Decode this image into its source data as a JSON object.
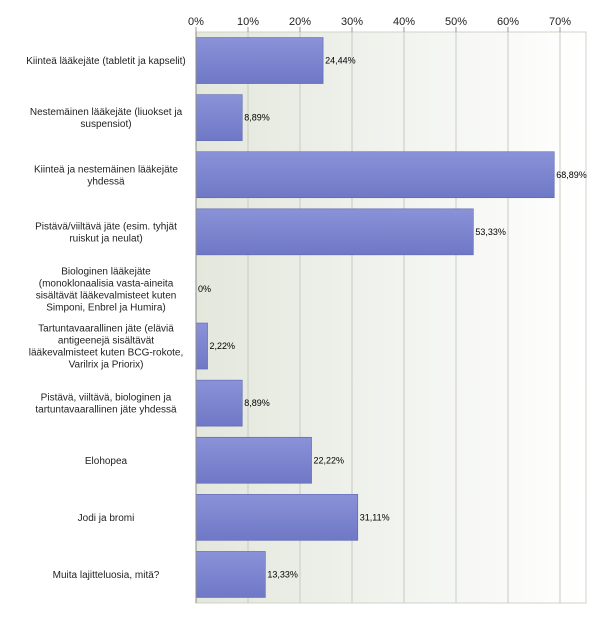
{
  "chart_data": {
    "type": "bar",
    "orientation": "horizontal",
    "title": "",
    "xlabel": "",
    "ylabel": "",
    "xlim": [
      0,
      75
    ],
    "x_ticks": [
      {
        "value": 0,
        "label": "0%"
      },
      {
        "value": 10,
        "label": "10%"
      },
      {
        "value": 20,
        "label": "20%"
      },
      {
        "value": 30,
        "label": "30%"
      },
      {
        "value": 40,
        "label": "40%"
      },
      {
        "value": 50,
        "label": "50%"
      },
      {
        "value": 60,
        "label": "60%"
      },
      {
        "value": 70,
        "label": "70%"
      }
    ],
    "tick_position": "top",
    "grid": true,
    "legend": "none",
    "bar_color": "#7b84d0",
    "plot_background": "#f0f2ec",
    "categories": [
      [
        "Kiinteä lääkejäte (tabletit ja kapselit)"
      ],
      [
        "Nestemäinen lääkejäte (liuokset ja",
        "suspensiot)"
      ],
      [
        "Kiinteä ja nestemäinen lääkejäte",
        "yhdessä"
      ],
      [
        "Pistävä/viiltävä jäte (esim. tyhjät",
        "ruiskut ja neulat)"
      ],
      [
        "Biologinen lääkejäte",
        "(monoklonaalisia vasta-aineita",
        "sisältävät lääkevalmisteet kuten",
        "Simponi, Enbrel ja Humira)"
      ],
      [
        "Tartuntavaarallinen jäte (eläviä",
        "antigeenejä sisältävät",
        "lääkevalmisteet kuten BCG-rokote,",
        "Varilrix ja Priorix)"
      ],
      [
        "Pistävä, viiltävä, biologinen ja",
        "tartuntavaarallinen jäte yhdessä"
      ],
      [
        "Elohopea"
      ],
      [
        "Jodi ja bromi"
      ],
      [
        "Muita lajitteluosia, mitä?"
      ]
    ],
    "values": [
      24.44,
      8.89,
      68.89,
      53.33,
      0,
      2.22,
      8.89,
      22.22,
      31.11,
      13.33
    ],
    "value_labels": [
      "24,44%",
      "8,89%",
      "68,89%",
      "53,33%",
      "0%",
      "2,22%",
      "8,89%",
      "22,22%",
      "31,11%",
      "13,33%"
    ]
  }
}
